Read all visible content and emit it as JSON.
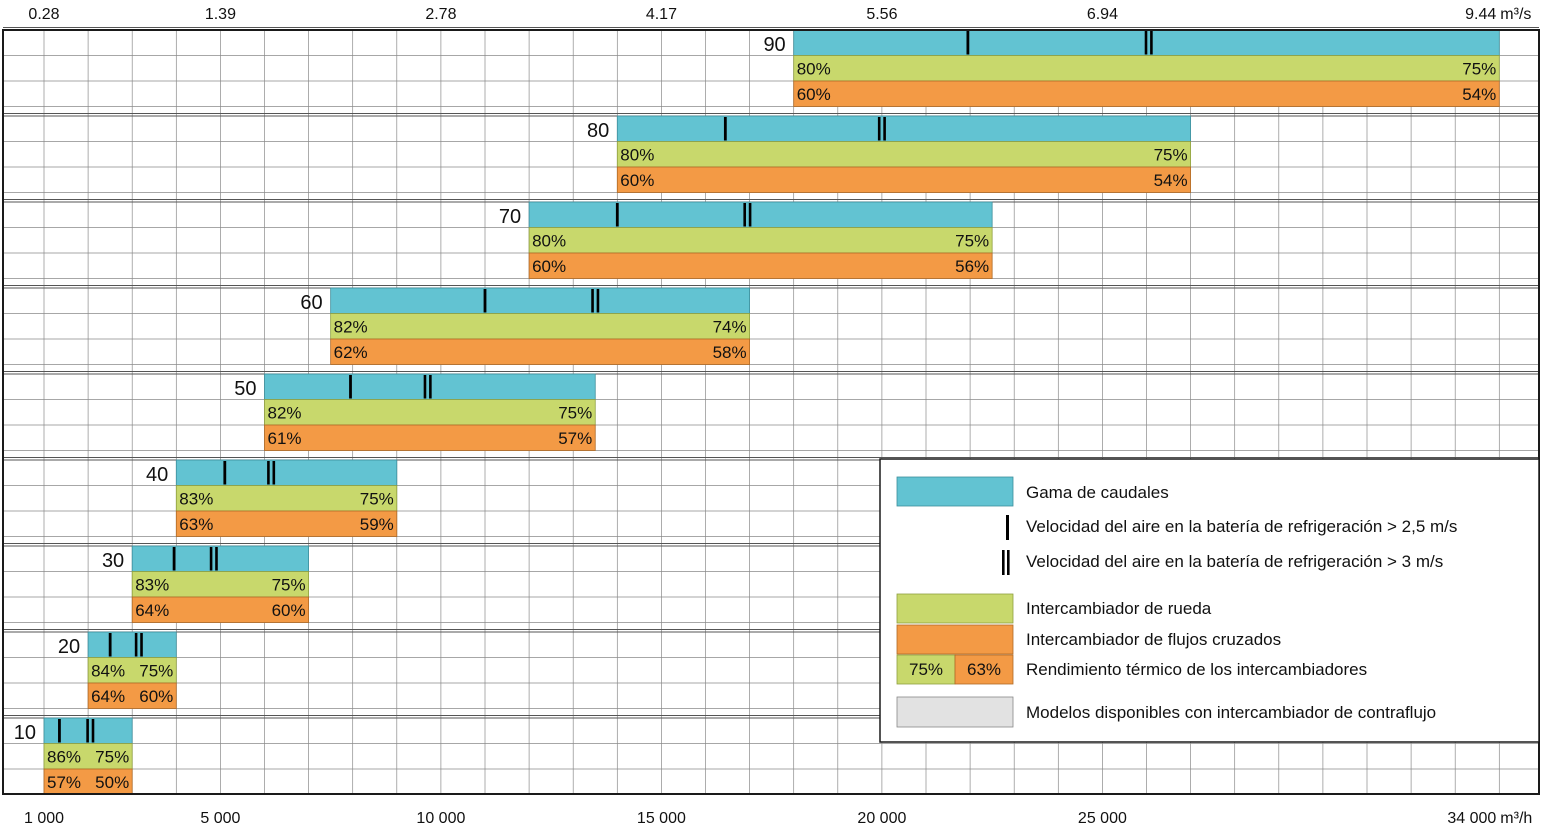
{
  "chart_data": {
    "type": "bar",
    "title": "",
    "colors": {
      "range": "#62c3d2",
      "wheel": "#c8d86c",
      "cross": "#f39a45",
      "counterflow": "#e2e2e2",
      "grid": "#8a8a8a",
      "frame": "#1a1a1a"
    },
    "top_axis": {
      "unit": "m³/s",
      "ticks": [
        {
          "label": "0.28",
          "x": 1000
        },
        {
          "label": "1.39",
          "x": 5000
        },
        {
          "label": "2.78",
          "x": 10000
        },
        {
          "label": "4.17",
          "x": 15000
        },
        {
          "label": "5.56",
          "x": 20000
        },
        {
          "label": "6.94",
          "x": 25000
        },
        {
          "label": "9.44",
          "x": 34000
        }
      ]
    },
    "bottom_axis": {
      "unit": "m³/h",
      "ticks": [
        {
          "label": "1 000",
          "x": 1000
        },
        {
          "label": "5 000",
          "x": 5000
        },
        {
          "label": "10 000",
          "x": 10000
        },
        {
          "label": "15 000",
          "x": 15000
        },
        {
          "label": "20 000",
          "x": 20000
        },
        {
          "label": "25 000",
          "x": 25000
        },
        {
          "label": "34 000",
          "x": 34000
        }
      ]
    },
    "series": [
      {
        "model": "10",
        "min": 1000,
        "max": 3000,
        "tick_2_5": 1350,
        "tick_3": 2050,
        "wheel_min": "86%",
        "wheel_max": "75%",
        "cross_min": "57%",
        "cross_max": "50%"
      },
      {
        "model": "20",
        "min": 2000,
        "max": 4000,
        "tick_2_5": 2500,
        "tick_3": 3150,
        "wheel_min": "84%",
        "wheel_max": "75%",
        "cross_min": "64%",
        "cross_max": "60%"
      },
      {
        "model": "30",
        "min": 3000,
        "max": 7000,
        "tick_2_5": 3950,
        "tick_3": 4850,
        "wheel_min": "83%",
        "wheel_max": "75%",
        "cross_min": "64%",
        "cross_max": "60%"
      },
      {
        "model": "40",
        "min": 4000,
        "max": 9000,
        "tick_2_5": 5100,
        "tick_3": 6150,
        "wheel_min": "83%",
        "wheel_max": "75%",
        "cross_min": "63%",
        "cross_max": "59%"
      },
      {
        "model": "50",
        "min": 6000,
        "max": 13500,
        "tick_2_5": 7950,
        "tick_3": 9700,
        "wheel_min": "82%",
        "wheel_max": "75%",
        "cross_min": "61%",
        "cross_max": "57%"
      },
      {
        "model": "60",
        "min": 7500,
        "max": 17000,
        "tick_2_5": 11000,
        "tick_3": 13500,
        "wheel_min": "82%",
        "wheel_max": "74%",
        "cross_min": "62%",
        "cross_max": "58%"
      },
      {
        "model": "70",
        "min": 12000,
        "max": 22500,
        "tick_2_5": 14000,
        "tick_3": 16950,
        "wheel_min": "80%",
        "wheel_max": "75%",
        "cross_min": "60%",
        "cross_max": "56%"
      },
      {
        "model": "80",
        "min": 14000,
        "max": 27000,
        "tick_2_5": 16450,
        "tick_3": 20000,
        "wheel_min": "80%",
        "wheel_max": "75%",
        "cross_min": "60%",
        "cross_max": "54%"
      },
      {
        "model": "90",
        "min": 18000,
        "max": 34000,
        "tick_2_5": 21950,
        "tick_3": 26050,
        "wheel_min": "80%",
        "wheel_max": "75%",
        "cross_min": "60%",
        "cross_max": "54%"
      }
    ],
    "legend": {
      "position": "bottom-right",
      "items": {
        "range": "Gama de caudales",
        "tick_2_5": "Velocidad del aire en la batería de refrigeración > 2,5 m/s",
        "tick_3": "Velocidad del aire en la batería de refrigeración > 3 m/s",
        "wheel": "Intercambiador de rueda",
        "cross": "Intercambiador de flujos cruzados",
        "efficiency": "Rendimiento térmico de los intercambiadores",
        "efficiency_wheel_sample": "75%",
        "efficiency_cross_sample": "63%",
        "counterflow": "Modelos disponibles con intercambiador de contraflujo"
      }
    }
  }
}
